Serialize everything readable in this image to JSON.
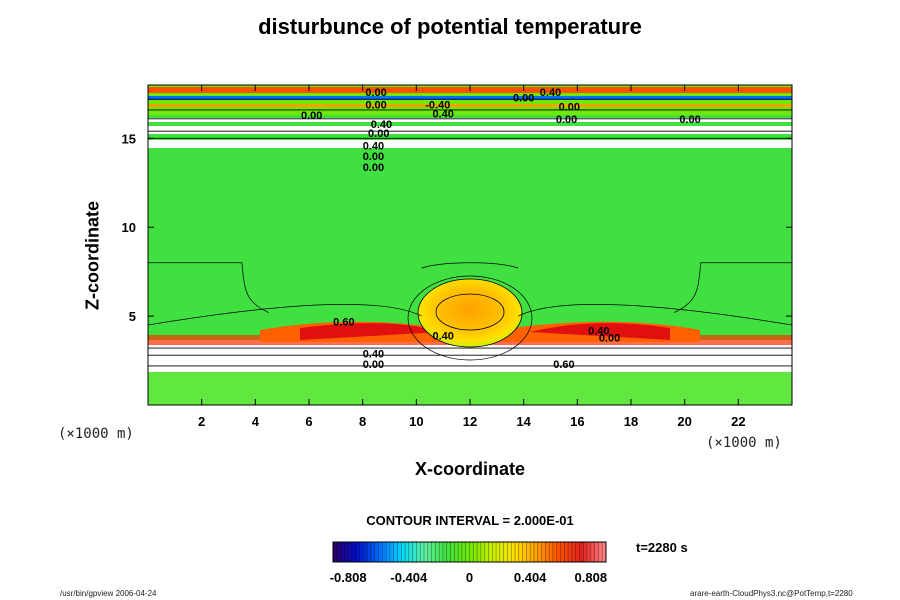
{
  "chart_data": {
    "type": "heatmap",
    "title": "disturbunce of potential temperature",
    "xlabel": "X-coordinate",
    "ylabel": "Z-coordinate",
    "x_unit": "(×1000 m)",
    "y_unit": "(×1000 m)",
    "xlim": [
      0,
      24
    ],
    "ylim": [
      0,
      18
    ],
    "x_ticks": [
      "2",
      "4",
      "6",
      "8",
      "10",
      "12",
      "14",
      "16",
      "18",
      "20",
      "22"
    ],
    "y_ticks": [
      "5",
      "10",
      "15"
    ],
    "x_tick_values": [
      2,
      4,
      6,
      8,
      10,
      12,
      14,
      16,
      18,
      20,
      22
    ],
    "y_tick_values": [
      5,
      10,
      15
    ],
    "contour_interval": "CONTOUR INTERVAL = 2.000E-01",
    "time_label": "t=2280 s",
    "colorbar": {
      "min": -0.909,
      "max": 0.909,
      "tick_labels": [
        "-0.808",
        "-0.404",
        "0",
        "0.404",
        "0.808"
      ],
      "tick_values": [
        -0.808,
        -0.404,
        0,
        0.404,
        0.808
      ],
      "colors": [
        "#2a006e",
        "#0010c8",
        "#0070ff",
        "#00d8f8",
        "#60f0a0",
        "#40e040",
        "#70e800",
        "#c8f000",
        "#ffe000",
        "#ffa000",
        "#ff5000",
        "#e02020",
        "#ff8080"
      ]
    },
    "contour_labels": [
      {
        "text": "0.00",
        "x": 8.5,
        "y": 17.6
      },
      {
        "text": "0.00",
        "x": 8.5,
        "y": 16.9
      },
      {
        "text": "-0.40",
        "x": 10.8,
        "y": 16.9
      },
      {
        "text": "0.40",
        "x": 11.0,
        "y": 16.4
      },
      {
        "text": "0.40",
        "x": 15.0,
        "y": 17.6
      },
      {
        "text": "0.00",
        "x": 14.0,
        "y": 17.3
      },
      {
        "text": "0.00",
        "x": 15.7,
        "y": 16.8
      },
      {
        "text": "0.00",
        "x": 15.6,
        "y": 16.1
      },
      {
        "text": "0.00",
        "x": 20.2,
        "y": 16.1
      },
      {
        "text": "0.00",
        "x": 6.1,
        "y": 16.3
      },
      {
        "text": "0.40",
        "x": 8.7,
        "y": 15.8
      },
      {
        "text": "0.00",
        "x": 8.6,
        "y": 15.3
      },
      {
        "text": "0.40",
        "x": 8.4,
        "y": 14.6
      },
      {
        "text": "0.00",
        "x": 8.4,
        "y": 14.0
      },
      {
        "text": "0.00",
        "x": 8.4,
        "y": 13.4
      },
      {
        "text": "0.60",
        "x": 7.3,
        "y": 4.7
      },
      {
        "text": "0.40",
        "x": 11.0,
        "y": 3.9
      },
      {
        "text": "0.40",
        "x": 16.8,
        "y": 4.2
      },
      {
        "text": "0.00",
        "x": 17.2,
        "y": 3.8
      },
      {
        "text": "0.40",
        "x": 8.4,
        "y": 2.9
      },
      {
        "text": "0.00",
        "x": 8.4,
        "y": 2.3
      },
      {
        "text": "0.60",
        "x": 15.5,
        "y": 2.3
      }
    ]
  },
  "footer": {
    "left": "/usr/bin/gpview 2006-04-24",
    "right": "arare-earth-CloudPhys3.nc@PotTemp,t=2280"
  }
}
